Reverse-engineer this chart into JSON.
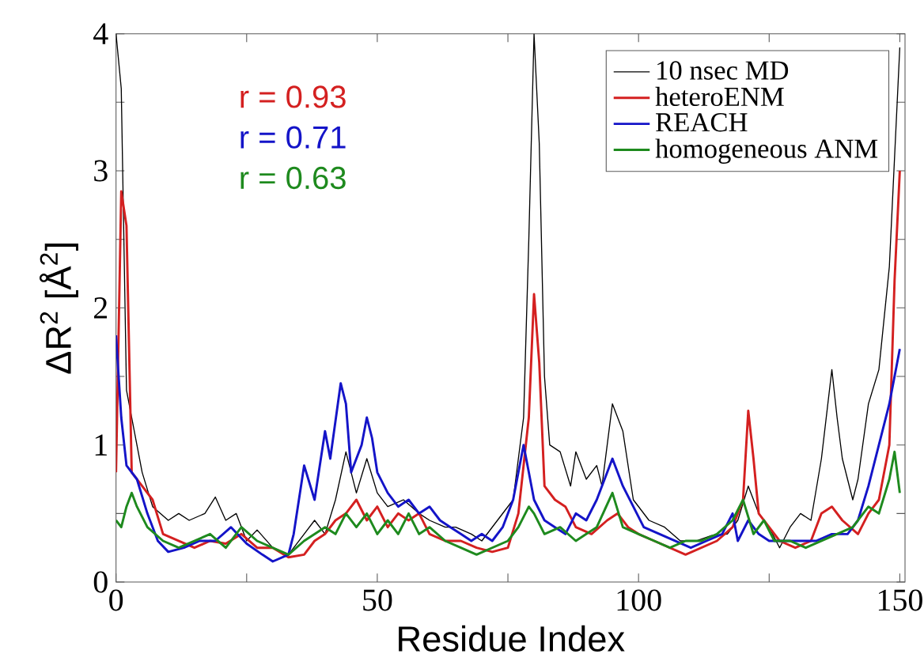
{
  "chart_data": {
    "type": "line",
    "xlabel": "Residue Index",
    "ylabel": "ΔR$^{2}$ [Å$^{2}$]",
    "annotations": [
      "r = 0.93",
      "r = 0.71",
      "r = 0.63"
    ],
    "xlim": [
      0,
      151
    ],
    "ylim": [
      0,
      4
    ],
    "xticks": [
      0,
      {
        "value": 25,
        "label": null
      },
      50,
      {
        "value": 75,
        "label": null
      },
      100,
      {
        "value": 125,
        "label": null
      },
      150
    ],
    "yticks": [
      0,
      {
        "value": 0.5,
        "label": null
      },
      1,
      {
        "value": 1.5,
        "label": null
      },
      2,
      {
        "value": 2.5,
        "label": null
      },
      3,
      {
        "value": 3.5,
        "label": null
      },
      4
    ],
    "legend": "top right",
    "grid": false,
    "marker": "none",
    "line_style": "solid",
    "series": [
      {
        "name": "10 nsec MD",
        "color": "#000000",
        "x": [
          0,
          1,
          2,
          3,
          5,
          7,
          10,
          12,
          14,
          17,
          19,
          21,
          23,
          25,
          27,
          30,
          33,
          36,
          38,
          40,
          42,
          44,
          46,
          48,
          50,
          52,
          55,
          58,
          60,
          63,
          65,
          68,
          70,
          73,
          76,
          78,
          79,
          80,
          81,
          82,
          83,
          85,
          87,
          88,
          90,
          92,
          93,
          95,
          97,
          99,
          102,
          105,
          108,
          111,
          114,
          117,
          119,
          121,
          123,
          125,
          127,
          129,
          131,
          133,
          135,
          137,
          138,
          139,
          141,
          142,
          144,
          146,
          148,
          150
        ],
        "values": [
          4.0,
          3.6,
          1.4,
          1.2,
          0.8,
          0.55,
          0.45,
          0.5,
          0.45,
          0.5,
          0.62,
          0.45,
          0.5,
          0.3,
          0.38,
          0.25,
          0.2,
          0.35,
          0.45,
          0.35,
          0.6,
          0.95,
          0.65,
          0.9,
          0.65,
          0.55,
          0.6,
          0.5,
          0.45,
          0.4,
          0.4,
          0.35,
          0.3,
          0.45,
          0.6,
          1.2,
          2.5,
          4.0,
          3.2,
          1.5,
          1.0,
          0.95,
          0.7,
          0.95,
          0.75,
          0.85,
          0.7,
          1.3,
          1.1,
          0.6,
          0.45,
          0.4,
          0.3,
          0.3,
          0.34,
          0.35,
          0.45,
          0.7,
          0.5,
          0.4,
          0.25,
          0.4,
          0.5,
          0.45,
          0.9,
          1.55,
          1.2,
          0.9,
          0.6,
          0.75,
          1.3,
          1.55,
          2.3,
          3.9
        ]
      },
      {
        "name": "heteroENM",
        "color": "#d42020",
        "x": [
          0,
          1,
          2,
          3,
          5,
          7,
          9,
          12,
          15,
          18,
          21,
          24,
          27,
          30,
          33,
          36,
          38,
          40,
          42,
          44,
          46,
          48,
          50,
          52,
          54,
          56,
          58,
          60,
          63,
          66,
          69,
          72,
          75,
          77,
          79,
          80,
          81,
          82,
          84,
          86,
          88,
          91,
          94,
          96,
          98,
          100,
          103,
          106,
          109,
          112,
          115,
          118,
          120,
          121,
          122,
          123,
          125,
          127,
          130,
          133,
          135,
          137,
          139,
          142,
          144,
          146,
          148,
          149,
          150
        ],
        "values": [
          0.8,
          2.85,
          2.6,
          0.8,
          0.7,
          0.6,
          0.35,
          0.3,
          0.25,
          0.3,
          0.28,
          0.35,
          0.25,
          0.25,
          0.18,
          0.2,
          0.3,
          0.35,
          0.45,
          0.5,
          0.6,
          0.45,
          0.55,
          0.4,
          0.5,
          0.45,
          0.5,
          0.35,
          0.3,
          0.3,
          0.25,
          0.22,
          0.25,
          0.5,
          1.2,
          2.1,
          1.6,
          0.7,
          0.6,
          0.55,
          0.4,
          0.35,
          0.45,
          0.5,
          0.4,
          0.35,
          0.3,
          0.25,
          0.2,
          0.25,
          0.3,
          0.4,
          0.6,
          1.25,
          0.9,
          0.5,
          0.4,
          0.3,
          0.25,
          0.3,
          0.5,
          0.55,
          0.45,
          0.35,
          0.5,
          0.6,
          1.0,
          2.2,
          3.0
        ]
      },
      {
        "name": "REACH",
        "color": "#1414c8",
        "x": [
          0,
          1,
          2,
          4,
          6,
          8,
          10,
          13,
          16,
          19,
          22,
          25,
          28,
          30,
          33,
          34,
          36,
          38,
          40,
          41,
          43,
          44,
          45,
          47,
          48,
          49,
          50,
          52,
          54,
          56,
          58,
          60,
          62,
          64,
          66,
          68,
          70,
          72,
          74,
          76,
          78,
          79,
          80,
          82,
          84,
          86,
          88,
          90,
          92,
          95,
          97,
          99,
          101,
          104,
          107,
          110,
          113,
          116,
          118,
          119,
          121,
          123,
          125,
          128,
          131,
          134,
          137,
          140,
          142,
          144,
          146,
          148,
          150
        ],
        "values": [
          1.8,
          1.2,
          0.85,
          0.75,
          0.5,
          0.3,
          0.22,
          0.25,
          0.3,
          0.3,
          0.4,
          0.28,
          0.2,
          0.15,
          0.2,
          0.35,
          0.85,
          0.6,
          1.1,
          0.9,
          1.45,
          1.3,
          0.8,
          1.0,
          1.2,
          1.05,
          0.8,
          0.65,
          0.55,
          0.6,
          0.5,
          0.55,
          0.45,
          0.4,
          0.35,
          0.3,
          0.35,
          0.3,
          0.4,
          0.6,
          1.0,
          0.8,
          0.6,
          0.45,
          0.4,
          0.35,
          0.5,
          0.45,
          0.6,
          0.9,
          0.7,
          0.55,
          0.4,
          0.35,
          0.3,
          0.25,
          0.3,
          0.35,
          0.5,
          0.3,
          0.45,
          0.35,
          0.3,
          0.3,
          0.3,
          0.3,
          0.35,
          0.35,
          0.45,
          0.7,
          1.0,
          1.3,
          1.7
        ]
      },
      {
        "name": "homogeneous ANM",
        "color": "#1e8a1e",
        "x": [
          0,
          1,
          2,
          3,
          4,
          6,
          9,
          12,
          15,
          18,
          21,
          24,
          27,
          30,
          33,
          36,
          38,
          40,
          42,
          44,
          46,
          48,
          50,
          52,
          54,
          56,
          58,
          60,
          63,
          66,
          69,
          72,
          75,
          77,
          79,
          80,
          82,
          85,
          88,
          90,
          92,
          95,
          97,
          100,
          103,
          106,
          109,
          112,
          115,
          118,
          120,
          122,
          124,
          126,
          129,
          132,
          135,
          138,
          141,
          144,
          146,
          148,
          149,
          150
        ],
        "values": [
          0.45,
          0.4,
          0.55,
          0.65,
          0.55,
          0.4,
          0.3,
          0.25,
          0.3,
          0.35,
          0.25,
          0.4,
          0.3,
          0.25,
          0.2,
          0.3,
          0.35,
          0.4,
          0.35,
          0.5,
          0.4,
          0.5,
          0.35,
          0.45,
          0.35,
          0.5,
          0.35,
          0.4,
          0.3,
          0.25,
          0.2,
          0.25,
          0.3,
          0.4,
          0.55,
          0.5,
          0.35,
          0.4,
          0.3,
          0.35,
          0.4,
          0.65,
          0.4,
          0.35,
          0.3,
          0.25,
          0.3,
          0.3,
          0.35,
          0.45,
          0.6,
          0.35,
          0.45,
          0.3,
          0.3,
          0.25,
          0.3,
          0.35,
          0.4,
          0.55,
          0.5,
          0.75,
          0.95,
          0.65
        ]
      }
    ]
  }
}
